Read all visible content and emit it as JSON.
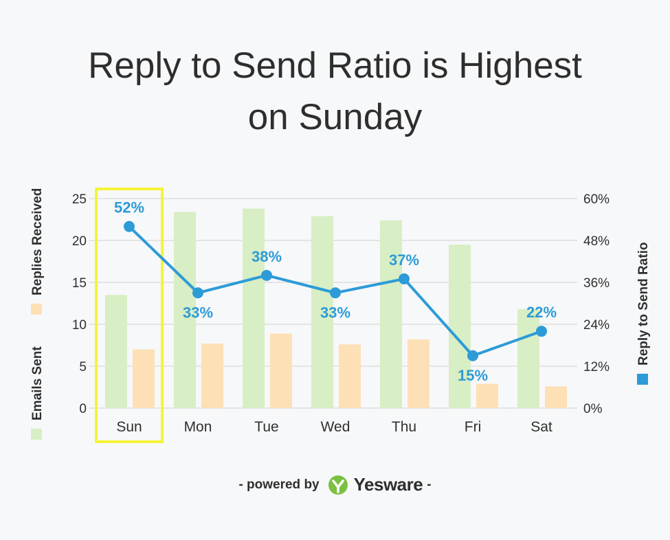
{
  "title_line1": "Reply to Send Ratio is Highest",
  "title_line2": "on Sunday",
  "footer": {
    "prefix": "- powered by",
    "brand": "Yesware",
    "suffix": "-"
  },
  "colors": {
    "emails_sent": "#d8eec4",
    "replies_received": "#fde0b6",
    "ratio": "#2d9bd7",
    "highlight": "#f4f437",
    "grid": "#dddddd",
    "text": "#2f2f2f"
  },
  "highlight_category": "Sun",
  "chart_data": {
    "type": "bar",
    "categories": [
      "Sun",
      "Mon",
      "Tue",
      "Wed",
      "Thu",
      "Fri",
      "Sat"
    ],
    "series": [
      {
        "name": "Emails Sent",
        "type": "bar",
        "axis": "left",
        "values": [
          13.5,
          23.4,
          23.8,
          22.9,
          22.4,
          19.5,
          11.8
        ]
      },
      {
        "name": "Replies Received",
        "type": "bar",
        "axis": "left",
        "values": [
          7.0,
          7.7,
          8.9,
          7.6,
          8.2,
          2.9,
          2.6
        ]
      },
      {
        "name": "Reply to Send Ratio",
        "type": "line",
        "axis": "right",
        "values": [
          52,
          33,
          38,
          33,
          37,
          15,
          22
        ],
        "labels": [
          "52%",
          "33%",
          "38%",
          "33%",
          "37%",
          "15%",
          "22%"
        ]
      }
    ],
    "left_axis": {
      "ticks": [
        "0",
        "5",
        "10",
        "15",
        "20",
        "25"
      ],
      "ylim": [
        0,
        25
      ]
    },
    "right_axis": {
      "ticks": [
        "0%",
        "12%",
        "24%",
        "36%",
        "48%",
        "60%"
      ],
      "ylim": [
        0,
        60
      ],
      "label": "Reply to Send Ratio"
    },
    "left_axis_legend": [
      "Emails Sent",
      "Replies Received"
    ],
    "grid": true
  }
}
